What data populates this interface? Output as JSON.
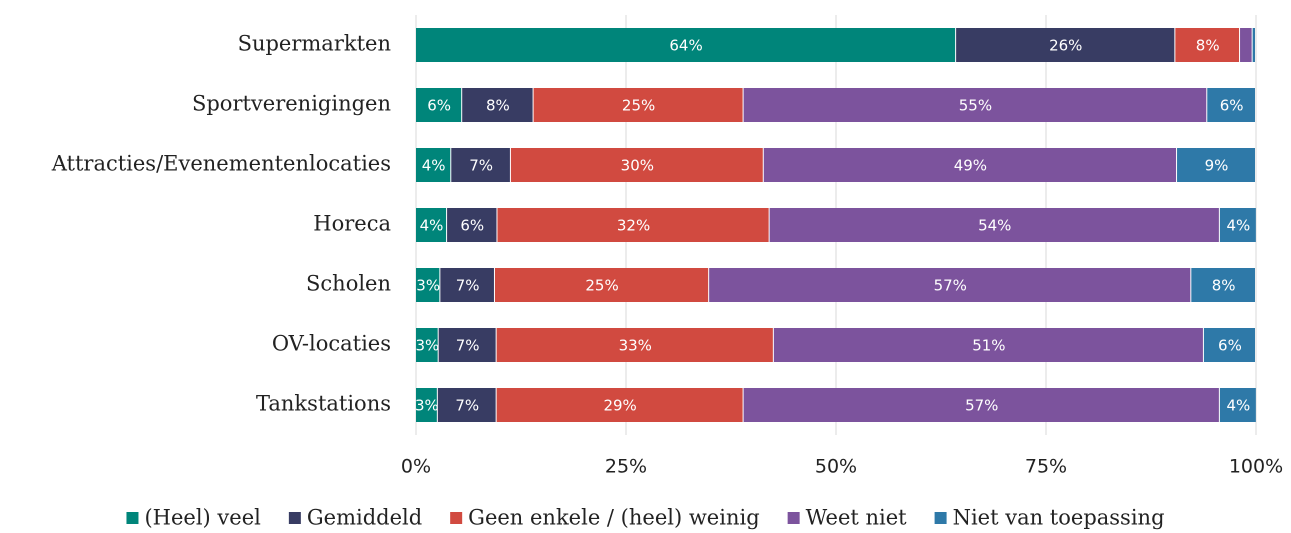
{
  "chart_data": {
    "type": "stacked_barh",
    "categories": [
      "Supermarkten",
      "Sportverenigingen",
      "Attracties/Evenementenlocaties",
      "Horeca",
      "Scholen",
      "OV-locaties",
      "Tankstations"
    ],
    "series": [
      {
        "name": "(Heel) veel",
        "color": "#00857a",
        "values": [
          64.3,
          5.5,
          4.2,
          3.7,
          2.9,
          2.7,
          2.6
        ],
        "value_labels": [
          "64%",
          "6%",
          "4%",
          "4%",
          "3%",
          "3%",
          "3%"
        ]
      },
      {
        "name": "Gemiddeld",
        "color": "#383c63",
        "values": [
          26.1,
          8.5,
          7.1,
          6.0,
          6.5,
          6.9,
          7.0
        ],
        "value_labels": [
          "26%",
          "8%",
          "7%",
          "6%",
          "7%",
          "7%",
          "7%"
        ]
      },
      {
        "name": "Geen enkele / (heel) weinig",
        "color": "#d14a40",
        "values": [
          7.7,
          25.0,
          30.1,
          32.4,
          25.5,
          33.0,
          29.4
        ],
        "value_labels": [
          "8%",
          "25%",
          "30%",
          "32%",
          "25%",
          "33%",
          "29%"
        ]
      },
      {
        "name": "Weet niet",
        "color": "#7c539d",
        "values": [
          1.5,
          55.2,
          49.2,
          53.6,
          57.4,
          51.2,
          56.7
        ],
        "value_labels": [
          null,
          "55%",
          "49%",
          "54%",
          "57%",
          "51%",
          "57%"
        ]
      },
      {
        "name": "Niet van toepassing",
        "color": "#2e79a8",
        "values": [
          0.4,
          5.8,
          9.4,
          4.4,
          7.7,
          6.2,
          4.4
        ],
        "value_labels": [
          null,
          "6%",
          "9%",
          "4%",
          "8%",
          "6%",
          "4%"
        ]
      }
    ],
    "xlim": [
      0,
      100
    ],
    "xticks": [
      {
        "value": 0,
        "label": "0%"
      },
      {
        "value": 25,
        "label": "25%"
      },
      {
        "value": 50,
        "label": "50%"
      },
      {
        "value": 75,
        "label": "75%"
      },
      {
        "value": 100,
        "label": "100%"
      }
    ],
    "grid": true,
    "legend": "bottom"
  }
}
